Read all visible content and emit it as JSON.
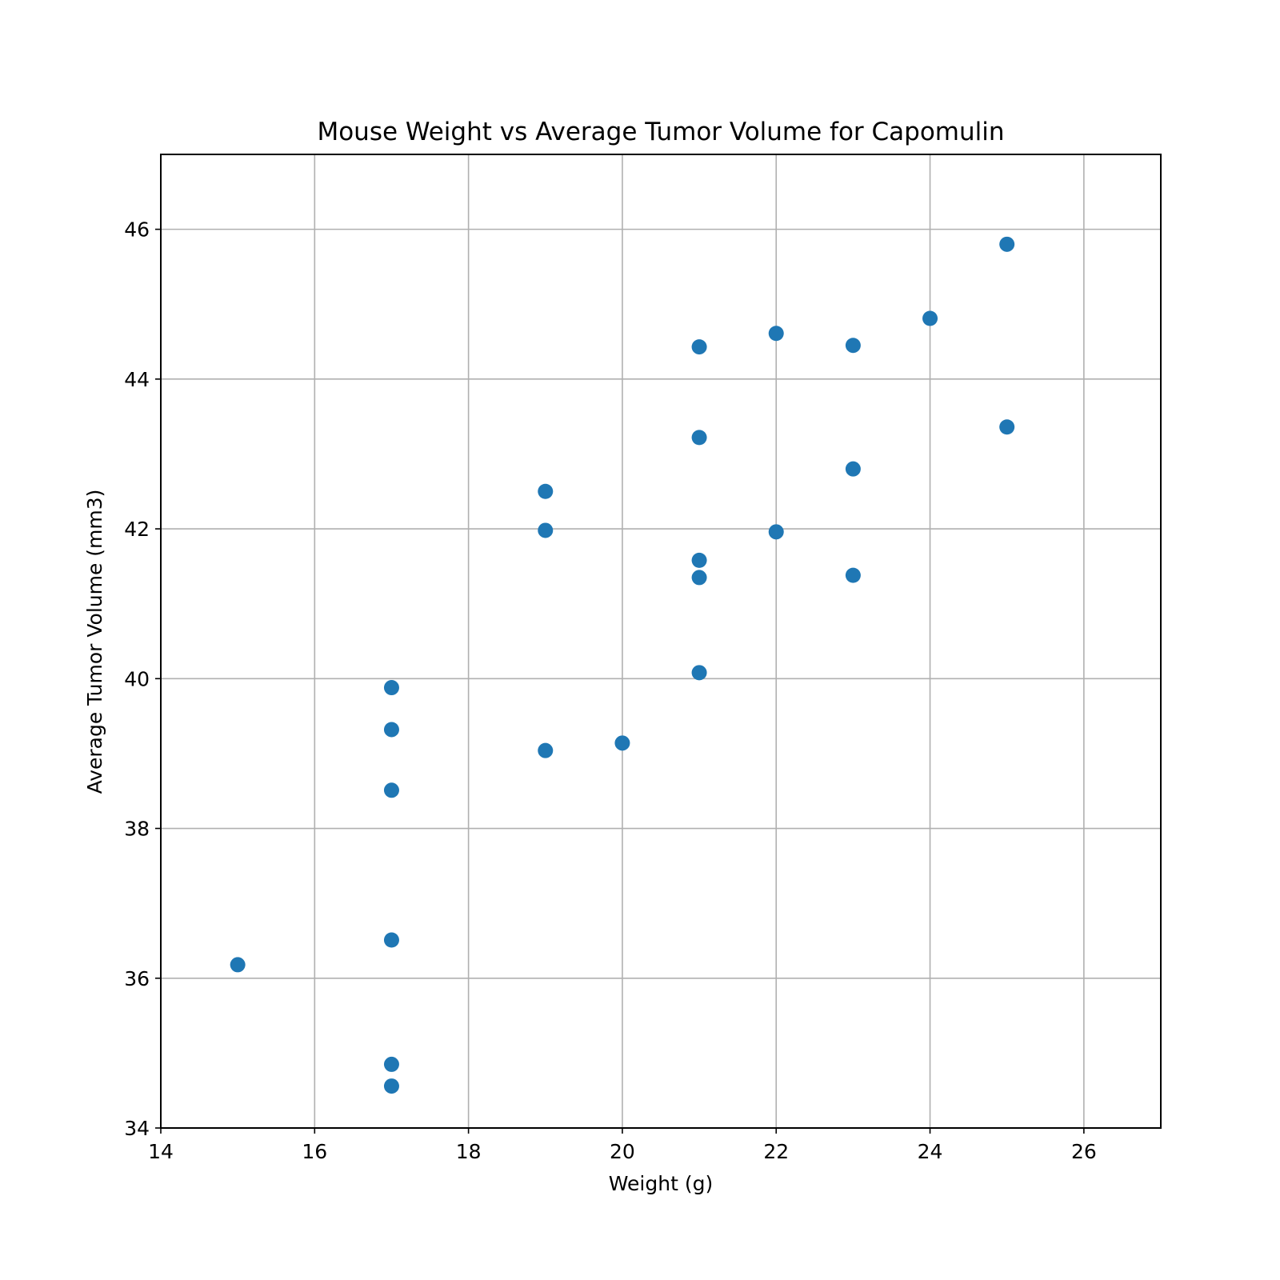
{
  "chart_data": {
    "type": "scatter",
    "title": "Mouse Weight vs Average Tumor Volume for Capomulin",
    "xlabel": "Weight (g)",
    "ylabel": "Average Tumor Volume (mm3)",
    "xlim": [
      14,
      27
    ],
    "ylim": [
      34,
      47
    ],
    "xticks": [
      14,
      16,
      18,
      20,
      22,
      24,
      26
    ],
    "yticks": [
      34,
      36,
      38,
      40,
      42,
      44,
      46
    ],
    "grid": true,
    "marker_color": "#1f77b4",
    "series": [
      {
        "points": [
          {
            "x": 15,
            "y": 36.18
          },
          {
            "x": 17,
            "y": 39.88
          },
          {
            "x": 17,
            "y": 39.32
          },
          {
            "x": 17,
            "y": 38.51
          },
          {
            "x": 17,
            "y": 36.51
          },
          {
            "x": 17,
            "y": 34.85
          },
          {
            "x": 17,
            "y": 34.56
          },
          {
            "x": 19,
            "y": 42.5
          },
          {
            "x": 19,
            "y": 41.98
          },
          {
            "x": 19,
            "y": 39.04
          },
          {
            "x": 20,
            "y": 39.14
          },
          {
            "x": 21,
            "y": 44.43
          },
          {
            "x": 21,
            "y": 43.22
          },
          {
            "x": 21,
            "y": 41.58
          },
          {
            "x": 21,
            "y": 41.35
          },
          {
            "x": 21,
            "y": 40.08
          },
          {
            "x": 22,
            "y": 44.61
          },
          {
            "x": 22,
            "y": 41.96
          },
          {
            "x": 23,
            "y": 44.45
          },
          {
            "x": 23,
            "y": 42.8
          },
          {
            "x": 23,
            "y": 41.38
          },
          {
            "x": 24,
            "y": 44.81
          },
          {
            "x": 25,
            "y": 45.8
          },
          {
            "x": 25,
            "y": 43.36
          }
        ]
      }
    ]
  }
}
